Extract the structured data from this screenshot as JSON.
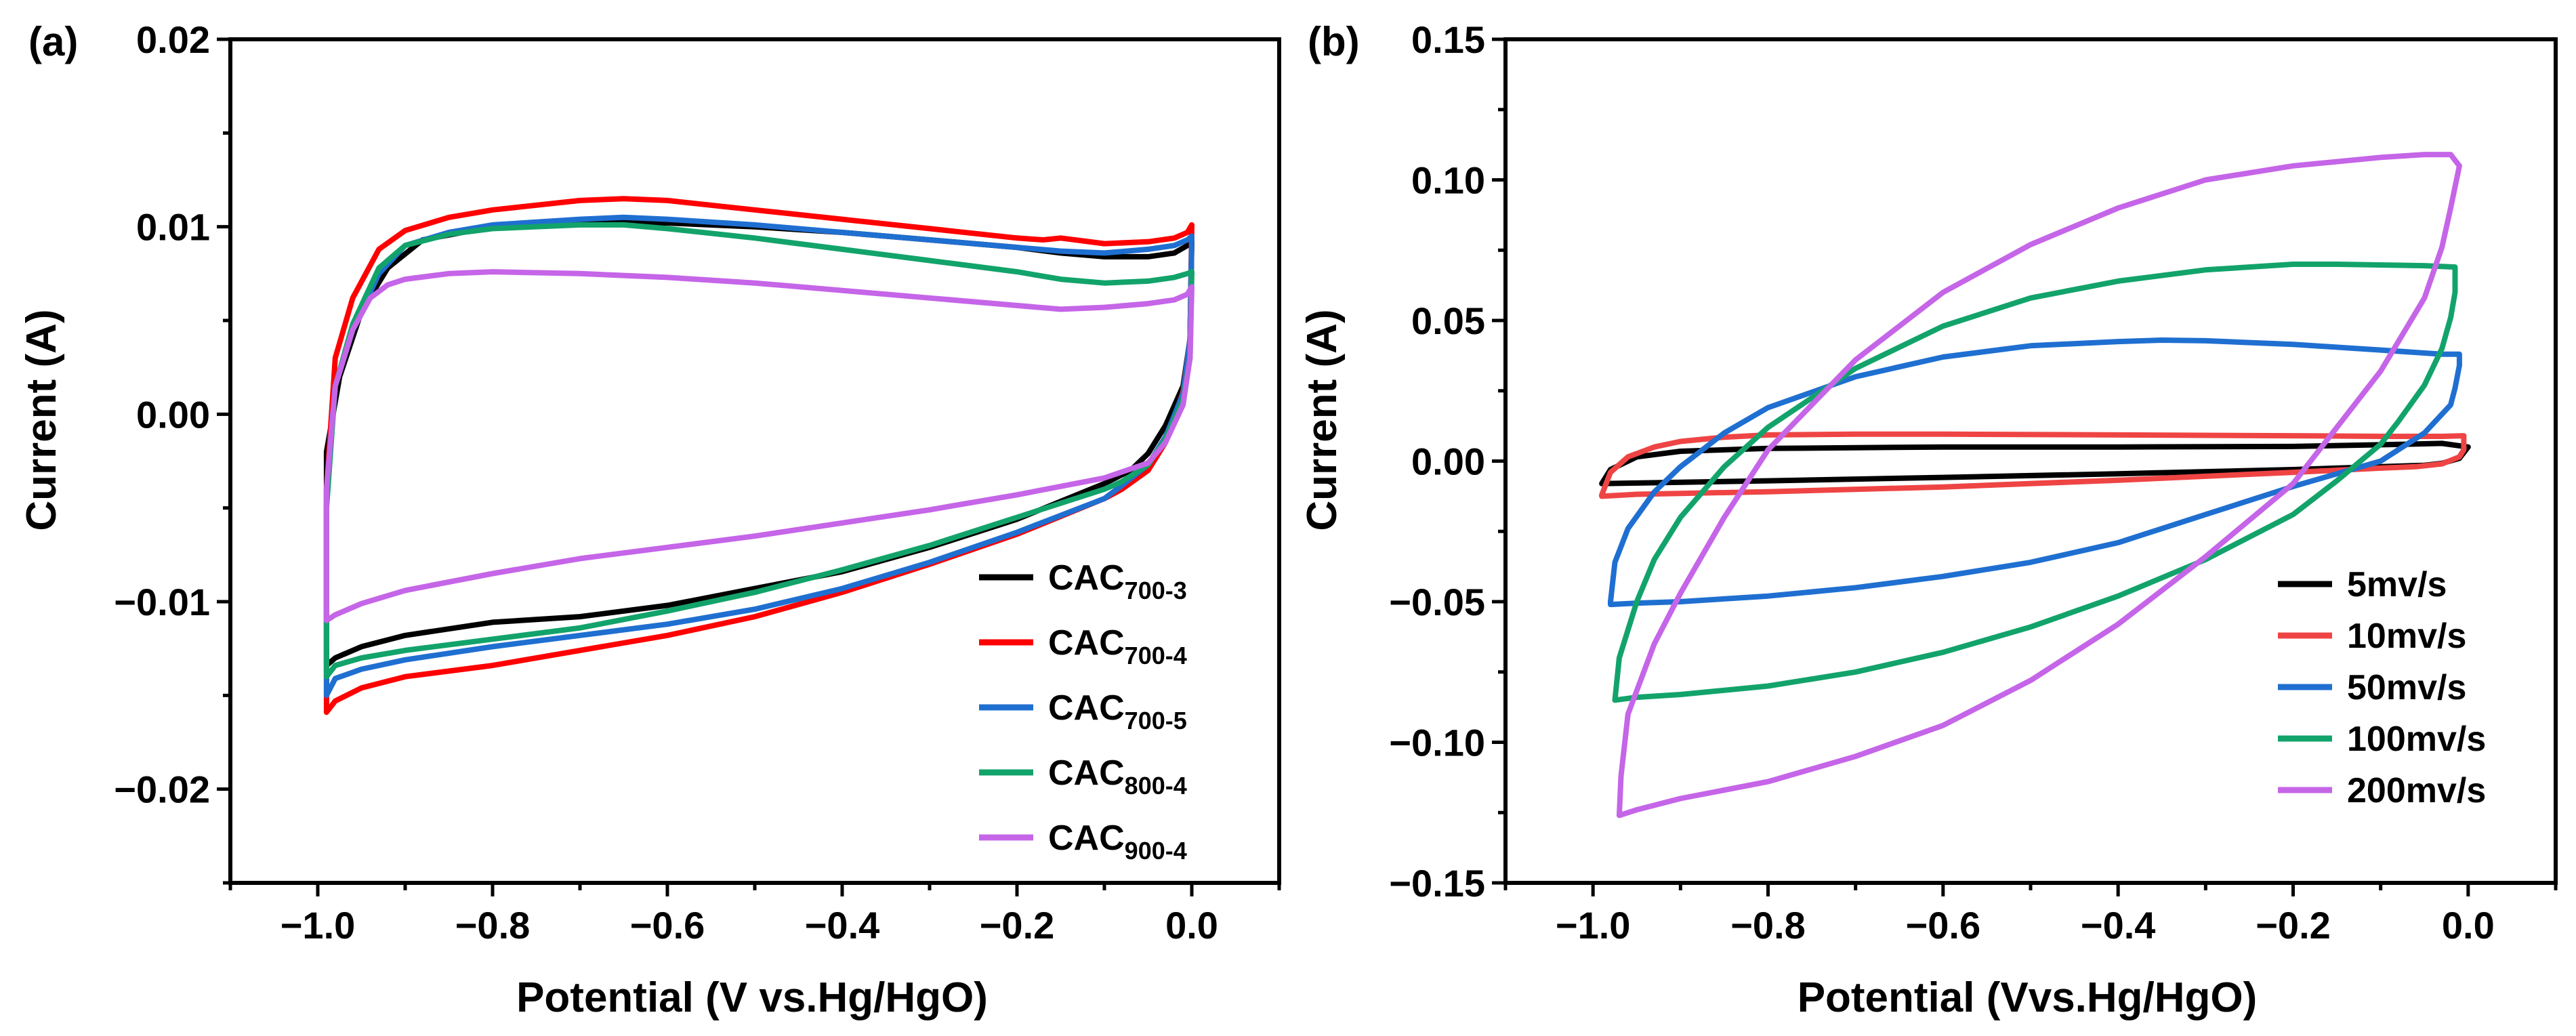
{
  "chart_data": [
    {
      "panel_label": "(a)",
      "type": "line",
      "xlabel": "Potential (V vs.Hg/HgO)",
      "ylabel": "Current (A)",
      "xlim": [
        -1.1,
        0.1
      ],
      "ylim": [
        -0.025,
        0.02
      ],
      "xticks": [
        -1.0,
        -0.8,
        -0.6,
        -0.4,
        -0.2,
        0.0
      ],
      "xtick_labels": [
        "−1.0",
        "−0.8",
        "−0.6",
        "−0.4",
        "−0.2",
        "0.0"
      ],
      "yticks": [
        0.02,
        0.01,
        0.0,
        -0.01,
        -0.02
      ],
      "ytick_labels": [
        "0.02",
        "0.01",
        "0.00",
        "−0.01",
        "−0.02"
      ],
      "legend_position": "bottom-right",
      "series": [
        {
          "name": "CAC",
          "sub": "700-3",
          "color": "#000000",
          "x": [
            -0.99,
            -0.975,
            -0.95,
            -0.92,
            -0.88,
            -0.8,
            -0.7,
            -0.6,
            -0.5,
            -0.4,
            -0.3,
            -0.2,
            -0.15,
            -0.1,
            -0.05,
            -0.02,
            -0.005,
            0.0,
            -0.002,
            -0.01,
            -0.03,
            -0.05,
            -0.07,
            -0.1,
            -0.2,
            -0.3,
            -0.4,
            -0.5,
            -0.6,
            -0.7,
            -0.8,
            -0.9,
            -0.95,
            -0.98,
            -0.99,
            -0.99
          ],
          "y": [
            -0.002,
            0.002,
            0.0055,
            0.0078,
            0.0093,
            0.01,
            0.0103,
            0.0102,
            0.01,
            0.0097,
            0.0093,
            0.0089,
            0.0086,
            0.0084,
            0.0084,
            0.0086,
            0.009,
            0.0092,
            0.004,
            0.0015,
            -0.0006,
            -0.0021,
            -0.003,
            -0.0037,
            -0.0056,
            -0.0071,
            -0.0084,
            -0.0093,
            -0.0102,
            -0.0108,
            -0.0111,
            -0.0118,
            -0.0124,
            -0.013,
            -0.0134,
            -0.002
          ]
        },
        {
          "name": "CAC",
          "sub": "700-4",
          "color": "#ff0000",
          "x": [
            -0.99,
            -0.98,
            -0.96,
            -0.93,
            -0.9,
            -0.85,
            -0.8,
            -0.7,
            -0.65,
            -0.6,
            -0.5,
            -0.4,
            -0.3,
            -0.2,
            -0.17,
            -0.15,
            -0.1,
            -0.05,
            -0.02,
            -0.005,
            0.0,
            -0.002,
            -0.01,
            -0.03,
            -0.05,
            -0.08,
            -0.1,
            -0.2,
            -0.3,
            -0.4,
            -0.5,
            -0.6,
            -0.7,
            -0.8,
            -0.9,
            -0.95,
            -0.98,
            -0.99,
            -0.99
          ],
          "y": [
            -0.004,
            0.003,
            0.0062,
            0.0088,
            0.0098,
            0.0105,
            0.0109,
            0.0114,
            0.0115,
            0.0114,
            0.0109,
            0.0104,
            0.0099,
            0.0094,
            0.0093,
            0.0094,
            0.0091,
            0.0092,
            0.0094,
            0.0097,
            0.0101,
            0.004,
            0.0012,
            -0.0015,
            -0.003,
            -0.004,
            -0.0045,
            -0.0064,
            -0.008,
            -0.0095,
            -0.0108,
            -0.0118,
            -0.0126,
            -0.0134,
            -0.014,
            -0.0146,
            -0.0153,
            -0.0159,
            -0.004
          ]
        },
        {
          "name": "CAC",
          "sub": "700-5",
          "color": "#1f6fd1",
          "x": [
            -0.99,
            -0.98,
            -0.96,
            -0.93,
            -0.9,
            -0.85,
            -0.8,
            -0.7,
            -0.65,
            -0.6,
            -0.5,
            -0.4,
            -0.3,
            -0.2,
            -0.15,
            -0.1,
            -0.05,
            -0.02,
            -0.005,
            0.0,
            -0.002,
            -0.01,
            -0.03,
            -0.05,
            -0.08,
            -0.1,
            -0.2,
            -0.3,
            -0.4,
            -0.5,
            -0.6,
            -0.7,
            -0.8,
            -0.9,
            -0.95,
            -0.98,
            -0.99,
            -0.99
          ],
          "y": [
            -0.004,
            0.0015,
            0.0045,
            0.0075,
            0.009,
            0.0097,
            0.0101,
            0.0104,
            0.0105,
            0.0104,
            0.0101,
            0.0097,
            0.0093,
            0.0089,
            0.0087,
            0.0086,
            0.0088,
            0.009,
            0.0093,
            0.0095,
            0.004,
            0.0011,
            -0.0012,
            -0.0027,
            -0.0038,
            -0.0045,
            -0.0063,
            -0.0079,
            -0.0093,
            -0.0104,
            -0.0112,
            -0.0118,
            -0.0124,
            -0.0131,
            -0.0136,
            -0.0141,
            -0.015,
            -0.004
          ]
        },
        {
          "name": "CAC",
          "sub": "800-4",
          "color": "#12a36b",
          "x": [
            -0.99,
            -0.98,
            -0.96,
            -0.93,
            -0.9,
            -0.85,
            -0.8,
            -0.7,
            -0.65,
            -0.6,
            -0.5,
            -0.4,
            -0.3,
            -0.2,
            -0.15,
            -0.1,
            -0.05,
            -0.02,
            -0.005,
            0.0,
            -0.002,
            -0.01,
            -0.03,
            -0.05,
            -0.08,
            -0.1,
            -0.2,
            -0.3,
            -0.4,
            -0.5,
            -0.6,
            -0.7,
            -0.8,
            -0.9,
            -0.95,
            -0.98,
            -0.99,
            -0.99
          ],
          "y": [
            -0.005,
            0.0015,
            0.0048,
            0.0078,
            0.009,
            0.0096,
            0.0099,
            0.0101,
            0.0101,
            0.0099,
            0.0094,
            0.0088,
            0.0082,
            0.0076,
            0.0072,
            0.007,
            0.0071,
            0.0073,
            0.0075,
            0.0076,
            0.003,
            0.0008,
            -0.0013,
            -0.0027,
            -0.0036,
            -0.004,
            -0.0055,
            -0.007,
            -0.0083,
            -0.0095,
            -0.0105,
            -0.0114,
            -0.012,
            -0.0126,
            -0.013,
            -0.0134,
            -0.014,
            -0.005
          ]
        },
        {
          "name": "CAC",
          "sub": "900-4",
          "color": "#c565e8",
          "x": [
            -0.99,
            -0.98,
            -0.96,
            -0.94,
            -0.92,
            -0.9,
            -0.85,
            -0.8,
            -0.7,
            -0.6,
            -0.5,
            -0.4,
            -0.3,
            -0.2,
            -0.15,
            -0.1,
            -0.05,
            -0.02,
            -0.005,
            0.0,
            -0.002,
            -0.01,
            -0.03,
            -0.05,
            -0.1,
            -0.2,
            -0.3,
            -0.4,
            -0.5,
            -0.6,
            -0.7,
            -0.8,
            -0.9,
            -0.95,
            -0.98,
            -0.99,
            -0.99
          ],
          "y": [
            -0.004,
            0.0015,
            0.0045,
            0.0062,
            0.0069,
            0.0072,
            0.0075,
            0.0076,
            0.0075,
            0.0073,
            0.007,
            0.0066,
            0.0062,
            0.0058,
            0.0056,
            0.0057,
            0.0059,
            0.0061,
            0.0064,
            0.0068,
            0.003,
            0.0005,
            -0.0015,
            -0.0026,
            -0.0034,
            -0.0043,
            -0.0051,
            -0.0058,
            -0.0065,
            -0.0071,
            -0.0077,
            -0.0085,
            -0.0094,
            -0.0101,
            -0.0107,
            -0.011,
            -0.004
          ]
        }
      ]
    },
    {
      "panel_label": "(b)",
      "type": "line",
      "xlabel": "Potential (Vvs.Hg/HgO)",
      "ylabel": "Current (A)",
      "xlim": [
        -1.1,
        0.1
      ],
      "ylim": [
        -0.15,
        0.15
      ],
      "xticks": [
        -1.0,
        -0.8,
        -0.6,
        -0.4,
        -0.2,
        0.0
      ],
      "xtick_labels": [
        "−1.0",
        "−0.8",
        "−0.6",
        "−0.4",
        "−0.2",
        "0.0"
      ],
      "yticks": [
        0.15,
        0.1,
        0.05,
        0.0,
        -0.05,
        -0.1,
        -0.15
      ],
      "ytick_labels": [
        "0.15",
        "0.10",
        "0.05",
        "0.00",
        "−0.05",
        "−0.10",
        "−0.15"
      ],
      "legend_position": "bottom-right",
      "series": [
        {
          "name": "5mv/s",
          "color": "#000000",
          "x": [
            -0.99,
            -0.98,
            -0.95,
            -0.9,
            -0.8,
            -0.6,
            -0.4,
            -0.2,
            -0.1,
            -0.03,
            0.0,
            -0.01,
            -0.03,
            -0.05,
            -0.1,
            -0.2,
            -0.4,
            -0.6,
            -0.8,
            -0.95,
            -0.99
          ],
          "y": [
            -0.008,
            -0.003,
            0.0015,
            0.0035,
            0.0045,
            0.005,
            0.005,
            0.0052,
            0.0058,
            0.0063,
            0.005,
            0.001,
            -0.0008,
            -0.0015,
            -0.002,
            -0.003,
            -0.0045,
            -0.0058,
            -0.007,
            -0.0078,
            -0.008
          ]
        },
        {
          "name": "10mv/s",
          "color": "#ef4444",
          "x": [
            -0.99,
            -0.98,
            -0.96,
            -0.93,
            -0.9,
            -0.85,
            -0.8,
            -0.7,
            -0.6,
            -0.4,
            -0.2,
            -0.1,
            -0.03,
            -0.005,
            -0.005,
            -0.01,
            -0.03,
            -0.06,
            -0.1,
            -0.2,
            -0.4,
            -0.6,
            -0.8,
            -0.95,
            -0.99,
            -0.99
          ],
          "y": [
            -0.012,
            -0.004,
            0.0015,
            0.005,
            0.007,
            0.0085,
            0.0093,
            0.0096,
            0.0096,
            0.0093,
            0.009,
            0.0088,
            0.0088,
            0.009,
            0.004,
            0.0015,
            -0.001,
            -0.002,
            -0.0025,
            -0.004,
            -0.0068,
            -0.0092,
            -0.0109,
            -0.0118,
            -0.0125,
            -0.012
          ]
        },
        {
          "name": "50mv/s",
          "color": "#1f6fd1",
          "x": [
            -0.98,
            -0.975,
            -0.96,
            -0.93,
            -0.9,
            -0.85,
            -0.8,
            -0.7,
            -0.6,
            -0.5,
            -0.4,
            -0.35,
            -0.3,
            -0.2,
            -0.1,
            -0.03,
            -0.01,
            -0.01,
            -0.015,
            -0.02,
            -0.05,
            -0.1,
            -0.2,
            -0.3,
            -0.4,
            -0.5,
            -0.6,
            -0.7,
            -0.8,
            -0.9,
            -0.95,
            -0.98
          ],
          "y": [
            -0.05,
            -0.036,
            -0.024,
            -0.011,
            -0.002,
            0.01,
            0.019,
            0.03,
            0.037,
            0.041,
            0.0425,
            0.043,
            0.0428,
            0.0415,
            0.0395,
            0.038,
            0.038,
            0.034,
            0.026,
            0.02,
            0.01,
            0.0,
            -0.009,
            -0.019,
            -0.029,
            -0.036,
            -0.041,
            -0.045,
            -0.048,
            -0.05,
            -0.0505,
            -0.051
          ]
        },
        {
          "name": "100mv/s",
          "color": "#12a36b",
          "x": [
            -0.975,
            -0.97,
            -0.95,
            -0.93,
            -0.9,
            -0.85,
            -0.8,
            -0.7,
            -0.6,
            -0.5,
            -0.4,
            -0.3,
            -0.2,
            -0.15,
            -0.05,
            -0.015,
            -0.015,
            -0.02,
            -0.03,
            -0.05,
            -0.08,
            -0.1,
            -0.15,
            -0.2,
            -0.3,
            -0.4,
            -0.5,
            -0.6,
            -0.7,
            -0.8,
            -0.9,
            -0.95,
            -0.975
          ],
          "y": [
            -0.085,
            -0.07,
            -0.05,
            -0.035,
            -0.02,
            -0.002,
            0.012,
            0.033,
            0.048,
            0.058,
            0.064,
            0.068,
            0.07,
            0.07,
            0.0695,
            0.069,
            0.06,
            0.051,
            0.04,
            0.027,
            0.014,
            0.006,
            -0.007,
            -0.019,
            -0.035,
            -0.048,
            -0.059,
            -0.068,
            -0.075,
            -0.08,
            -0.083,
            -0.084,
            -0.085
          ]
        },
        {
          "name": "200mv/s",
          "color": "#c565e8",
          "x": [
            -0.97,
            -0.968,
            -0.96,
            -0.93,
            -0.9,
            -0.85,
            -0.8,
            -0.7,
            -0.6,
            -0.5,
            -0.4,
            -0.3,
            -0.2,
            -0.1,
            -0.05,
            -0.02,
            -0.01,
            -0.02,
            -0.03,
            -0.05,
            -0.1,
            -0.15,
            -0.2,
            -0.3,
            -0.4,
            -0.5,
            -0.6,
            -0.7,
            -0.8,
            -0.9,
            -0.95,
            -0.97
          ],
          "y": [
            -0.126,
            -0.112,
            -0.09,
            -0.065,
            -0.047,
            -0.02,
            0.004,
            0.036,
            0.06,
            0.077,
            0.09,
            0.1,
            0.105,
            0.108,
            0.109,
            0.109,
            0.105,
            0.09,
            0.076,
            0.058,
            0.032,
            0.012,
            -0.008,
            -0.034,
            -0.058,
            -0.078,
            -0.094,
            -0.105,
            -0.114,
            -0.12,
            -0.124,
            -0.126
          ]
        }
      ]
    }
  ]
}
